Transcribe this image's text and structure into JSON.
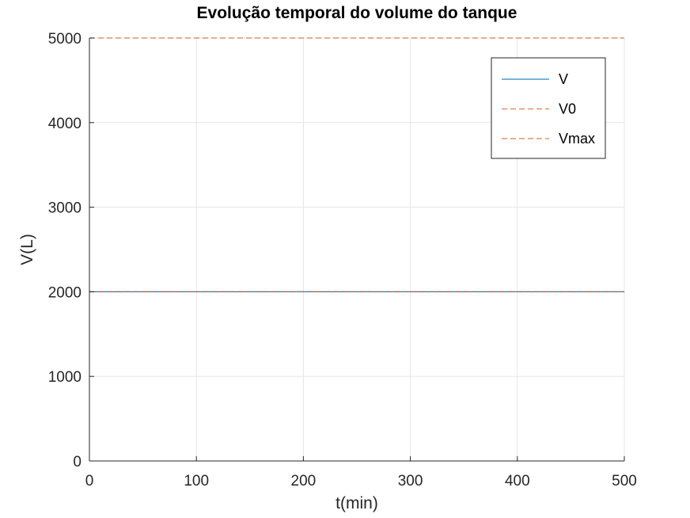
{
  "chart_data": {
    "type": "line",
    "title": "Evolução temporal do volume do tanque",
    "xlabel": "t(min)",
    "ylabel": "V(L)",
    "xlim": [
      0,
      500
    ],
    "ylim": [
      0,
      5000
    ],
    "xticks": [
      0,
      100,
      200,
      300,
      400,
      500
    ],
    "yticks": [
      0,
      1000,
      2000,
      3000,
      4000,
      5000
    ],
    "xtick_labels": [
      "0",
      "100",
      "200",
      "300",
      "400",
      "500"
    ],
    "ytick_labels": [
      "0",
      "1000",
      "2000",
      "3000",
      "4000",
      "5000"
    ],
    "grid": true,
    "legend_position": "top-right",
    "series": [
      {
        "name": "V",
        "style": "solid",
        "color": "#0072BD",
        "x": [
          0,
          500
        ],
        "y": [
          2000,
          2000
        ]
      },
      {
        "name": "V0",
        "style": "dashed",
        "color": "#D95319",
        "x": [
          0,
          500
        ],
        "y": [
          2000,
          2000
        ]
      },
      {
        "name": "Vmax",
        "style": "dashed",
        "color": "#D95319",
        "x": [
          0,
          500
        ],
        "y": [
          5000,
          5000
        ]
      }
    ]
  }
}
